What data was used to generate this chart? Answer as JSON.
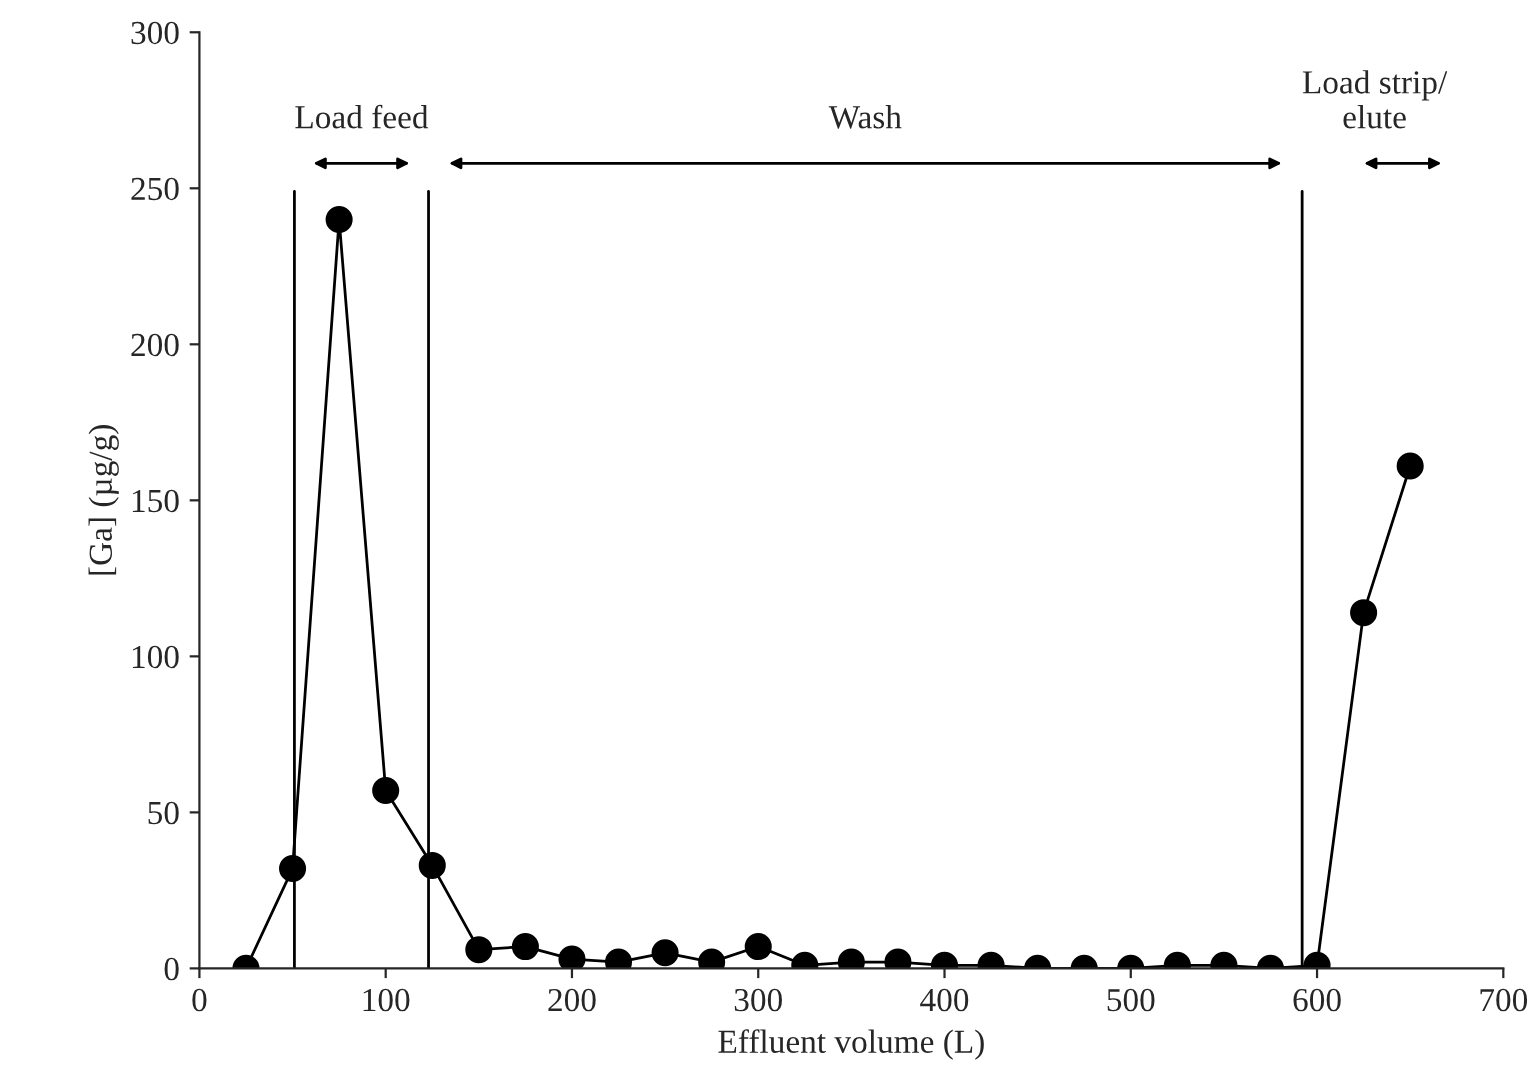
{
  "chart_data": {
    "type": "line",
    "xlabel": "Effluent volume (L)",
    "ylabel": "[Ga] (µg/g)",
    "x": [
      25,
      50,
      75,
      100,
      125,
      150,
      175,
      200,
      225,
      250,
      275,
      300,
      325,
      350,
      375,
      400,
      425,
      450,
      475,
      500,
      525,
      550,
      575,
      600,
      625,
      650
    ],
    "series": [
      {
        "color": "#000000",
        "values": [
          0,
          32,
          240,
          57,
          33,
          6,
          7,
          3,
          2,
          5,
          2,
          7,
          1,
          2,
          2,
          1,
          1,
          0,
          0,
          0,
          1,
          1,
          0,
          1,
          114,
          161
        ]
      }
    ],
    "xlim": [
      0,
      700
    ],
    "xticks": [
      0,
      100,
      200,
      300,
      400,
      500,
      600,
      700
    ],
    "ylim": [
      0,
      300
    ],
    "yticks": [
      0,
      50,
      100,
      150,
      200,
      250,
      300
    ],
    "ref_lines": [
      {
        "axis": "x",
        "value": 51,
        "color": "#000000"
      },
      {
        "axis": "x",
        "value": 123,
        "color": "#000000"
      },
      {
        "axis": "x",
        "value": 592,
        "color": "#000000"
      }
    ],
    "annotations": [
      "Load feed",
      "Wash",
      "Load strip/\nelute"
    ],
    "marker": "circle",
    "line_style": "solid",
    "grid": false,
    "legend": false
  }
}
